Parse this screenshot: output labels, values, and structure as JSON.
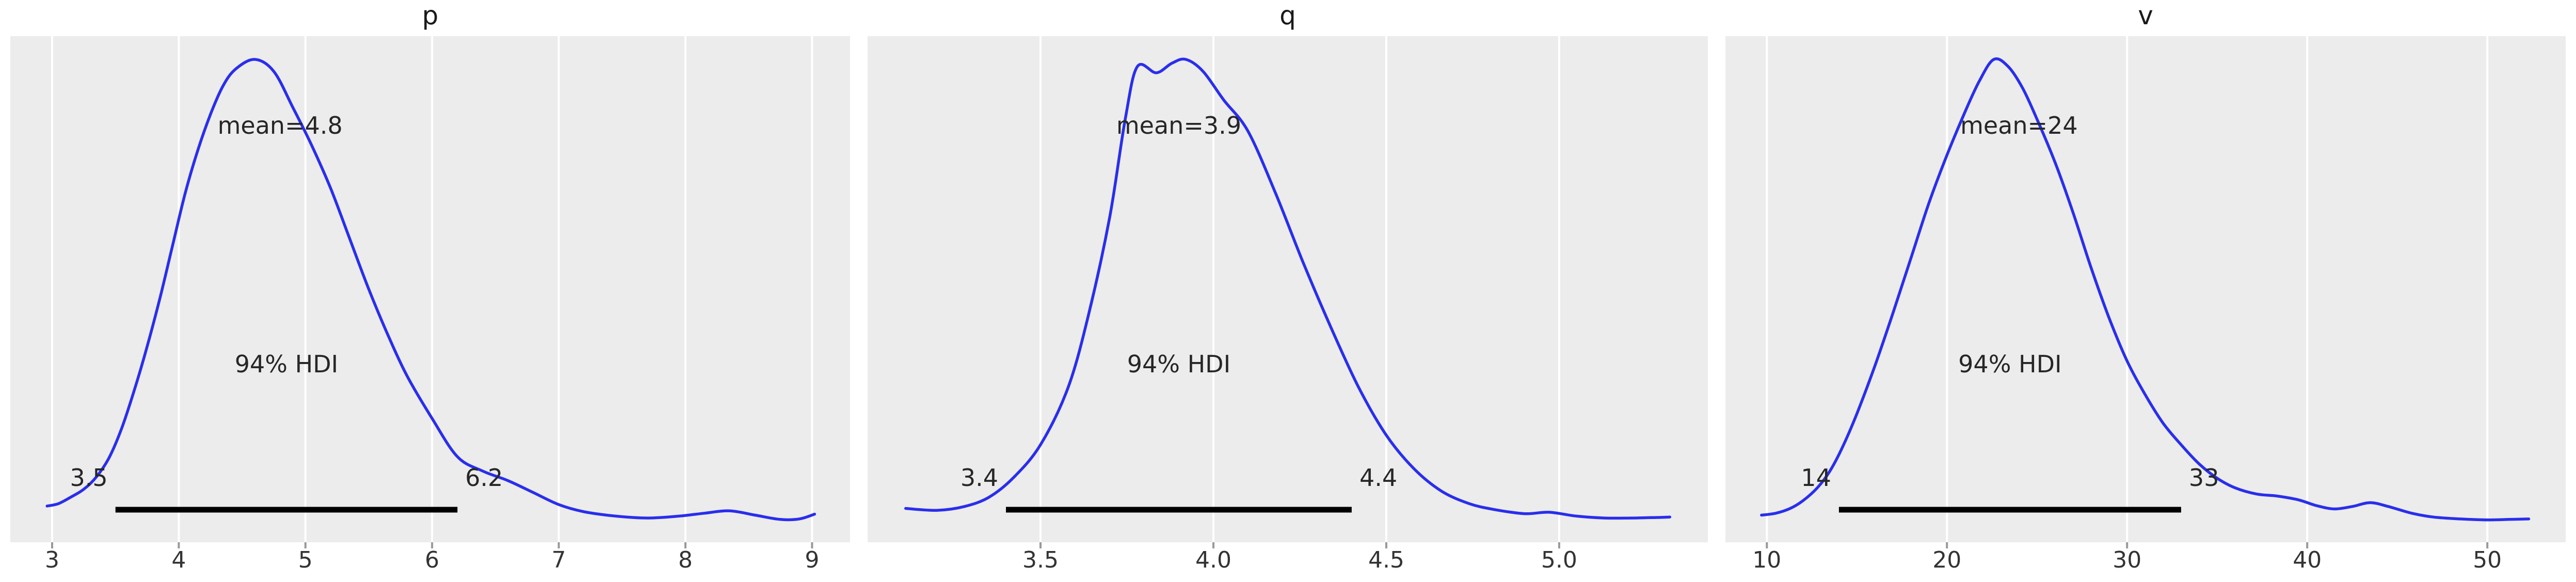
{
  "style": {
    "figure_background": "#ffffff",
    "panel_background": "#ececec",
    "grid_color": "#ffffff",
    "curve_color": "#2a2eec",
    "hdi_bar_color": "#000000",
    "text_color": "#262626",
    "tick_mark_color": "#999999"
  },
  "chart_data": [
    {
      "type": "line",
      "subtype": "kde-posterior",
      "title": "p",
      "mean": 4.8,
      "mean_label": "mean=4.8",
      "hdi_caption": "94% HDI",
      "hdi_lower": 3.5,
      "hdi_upper": 6.2,
      "hdi_lower_label": "3.5",
      "hdi_upper_label": "6.2",
      "xlim": [
        2.67,
        9.3
      ],
      "xticks": [
        3,
        4,
        5,
        6,
        7,
        8,
        9
      ],
      "xtick_labels": [
        "3",
        "4",
        "5",
        "6",
        "7",
        "8",
        "9"
      ],
      "grid": "vertical-white",
      "legend": "none",
      "kde": {
        "x": [
          2.96,
          3.05,
          3.15,
          3.25,
          3.35,
          3.45,
          3.55,
          3.65,
          3.75,
          3.85,
          3.95,
          4.05,
          4.15,
          4.25,
          4.35,
          4.45,
          4.6,
          4.75,
          4.9,
          5.05,
          5.2,
          5.35,
          5.5,
          5.65,
          5.8,
          6.0,
          6.2,
          6.4,
          6.6,
          6.8,
          7.0,
          7.2,
          7.45,
          7.7,
          7.95,
          8.15,
          8.35,
          8.55,
          8.75,
          8.9,
          9.02
        ],
        "density": [
          0.067,
          0.072,
          0.086,
          0.102,
          0.128,
          0.168,
          0.23,
          0.31,
          0.4,
          0.5,
          0.61,
          0.72,
          0.81,
          0.885,
          0.945,
          0.98,
          1.0,
          0.975,
          0.9,
          0.82,
          0.73,
          0.625,
          0.52,
          0.425,
          0.34,
          0.25,
          0.17,
          0.14,
          0.12,
          0.095,
          0.07,
          0.055,
          0.046,
          0.042,
          0.046,
          0.052,
          0.057,
          0.048,
          0.039,
          0.04,
          0.05
        ]
      }
    },
    {
      "type": "line",
      "subtype": "kde-posterior",
      "title": "q",
      "mean": 3.9,
      "mean_label": "mean=3.9",
      "hdi_caption": "94% HDI",
      "hdi_lower": 3.4,
      "hdi_upper": 4.4,
      "hdi_lower_label": "3.4",
      "hdi_upper_label": "4.4",
      "xlim": [
        3.0,
        5.43
      ],
      "xticks": [
        3.5,
        4.0,
        4.5,
        5.0
      ],
      "xtick_labels": [
        "3.5",
        "4.0",
        "4.5",
        "5.0"
      ],
      "grid": "vertical-white",
      "legend": "none",
      "kde": {
        "x": [
          3.11,
          3.2,
          3.28,
          3.35,
          3.42,
          3.5,
          3.58,
          3.64,
          3.7,
          3.745,
          3.78,
          3.835,
          3.88,
          3.92,
          3.97,
          4.03,
          4.1,
          4.18,
          4.26,
          4.34,
          4.42,
          4.5,
          4.58,
          4.66,
          4.74,
          4.81,
          4.9,
          4.97,
          5.05,
          5.13,
          5.21,
          5.28,
          5.32
        ],
        "density": [
          0.062,
          0.058,
          0.066,
          0.085,
          0.125,
          0.195,
          0.315,
          0.47,
          0.67,
          0.875,
          0.985,
          0.972,
          0.992,
          1.0,
          0.975,
          0.915,
          0.85,
          0.72,
          0.575,
          0.44,
          0.315,
          0.215,
          0.145,
          0.098,
          0.072,
          0.06,
          0.051,
          0.054,
          0.046,
          0.042,
          0.042,
          0.043,
          0.044
        ]
      }
    },
    {
      "type": "line",
      "subtype": "kde-posterior",
      "title": "v",
      "mean": 24,
      "mean_label": "mean=24",
      "hdi_caption": "94% HDI",
      "hdi_lower": 14,
      "hdi_upper": 33,
      "hdi_lower_label": "14",
      "hdi_upper_label": "33",
      "xlim": [
        7.7,
        54.35
      ],
      "xticks": [
        10,
        20,
        30,
        40,
        50
      ],
      "xtick_labels": [
        "10",
        "20",
        "30",
        "40",
        "50"
      ],
      "grid": "vertical-white",
      "legend": "none",
      "kde": {
        "x": [
          9.7,
          10.5,
          11.3,
          12.0,
          12.8,
          13.5,
          14.2,
          15.0,
          16.0,
          17.0,
          18.0,
          19.0,
          20.0,
          21.0,
          21.8,
          22.6,
          23.4,
          24.2,
          25.0,
          26.0,
          27.0,
          28.0,
          29.0,
          30.0,
          31.0,
          32.0,
          33.0,
          34.0,
          35.0,
          36.0,
          37.2,
          38.3,
          39.5,
          40.5,
          41.5,
          42.5,
          43.5,
          44.5,
          45.8,
          47.0,
          48.5,
          50.0,
          51.2,
          52.3
        ],
        "density": [
          0.048,
          0.052,
          0.062,
          0.078,
          0.105,
          0.14,
          0.19,
          0.26,
          0.36,
          0.47,
          0.585,
          0.7,
          0.8,
          0.89,
          0.955,
          1.0,
          0.985,
          0.94,
          0.875,
          0.785,
          0.68,
          0.565,
          0.46,
          0.37,
          0.3,
          0.24,
          0.195,
          0.155,
          0.125,
          0.105,
          0.092,
          0.088,
          0.08,
          0.068,
          0.061,
          0.066,
          0.074,
          0.066,
          0.052,
          0.044,
          0.04,
          0.038,
          0.039,
          0.04
        ]
      }
    }
  ]
}
